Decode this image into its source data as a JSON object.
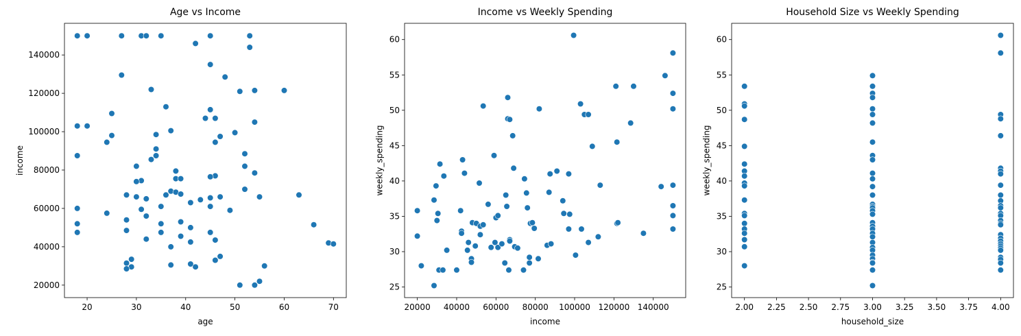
{
  "colors": {
    "point": "#1f77b4",
    "axis": "#000000",
    "background": "#ffffff"
  },
  "chart_data": [
    {
      "type": "scatter",
      "title": "Age vs Income",
      "xlabel": "age",
      "ylabel": "income",
      "xlim": [
        15.4,
        72.6
      ],
      "ylim": [
        13500,
        156500
      ],
      "xticks": [
        20,
        30,
        40,
        50,
        60,
        70
      ],
      "xtick_labels": [
        "20",
        "30",
        "40",
        "50",
        "60",
        "70"
      ],
      "yticks": [
        20000,
        40000,
        60000,
        80000,
        100000,
        120000,
        140000
      ],
      "ytick_labels": [
        "20000",
        "40000",
        "60000",
        "80000",
        "100000",
        "120000",
        "140000"
      ],
      "grid": false,
      "points": [
        [
          18,
          150000
        ],
        [
          20,
          150000
        ],
        [
          27,
          150000
        ],
        [
          31,
          150000
        ],
        [
          32,
          150000
        ],
        [
          35,
          150000
        ],
        [
          45,
          150000
        ],
        [
          53,
          150000
        ],
        [
          53,
          144000
        ],
        [
          42,
          146000
        ],
        [
          45,
          135000
        ],
        [
          27,
          129500
        ],
        [
          48,
          128500
        ],
        [
          33,
          122000
        ],
        [
          51,
          121000
        ],
        [
          54,
          121500
        ],
        [
          60,
          121500
        ],
        [
          36,
          113000
        ],
        [
          45,
          111500
        ],
        [
          25,
          109500
        ],
        [
          44,
          107000
        ],
        [
          46,
          107000
        ],
        [
          54,
          105000
        ],
        [
          18,
          103000
        ],
        [
          20,
          103000
        ],
        [
          46,
          94500
        ],
        [
          47,
          97500
        ],
        [
          50,
          99500
        ],
        [
          25,
          98000
        ],
        [
          24,
          94500
        ],
        [
          34,
          98500
        ],
        [
          37,
          100500
        ],
        [
          34,
          91000
        ],
        [
          33,
          85500
        ],
        [
          34,
          87500
        ],
        [
          18,
          87500
        ],
        [
          52,
          88500
        ],
        [
          52,
          82000
        ],
        [
          30,
          82000
        ],
        [
          38,
          79500
        ],
        [
          54,
          78500
        ],
        [
          46,
          77000
        ],
        [
          45,
          76500
        ],
        [
          31,
          74500
        ],
        [
          30,
          74000
        ],
        [
          38,
          75500
        ],
        [
          39,
          75500
        ],
        [
          37,
          69000
        ],
        [
          38,
          68500
        ],
        [
          39,
          67500
        ],
        [
          36,
          67000
        ],
        [
          28,
          67000
        ],
        [
          47,
          66000
        ],
        [
          45,
          65500
        ],
        [
          55,
          66000
        ],
        [
          63,
          67000
        ],
        [
          52,
          70000
        ],
        [
          30,
          66000
        ],
        [
          32,
          65000
        ],
        [
          41,
          63000
        ],
        [
          43,
          64500
        ],
        [
          45,
          61000
        ],
        [
          35,
          61000
        ],
        [
          31,
          59500
        ],
        [
          49,
          59000
        ],
        [
          18,
          60000
        ],
        [
          24,
          57500
        ],
        [
          32,
          56000
        ],
        [
          28,
          54000
        ],
        [
          39,
          53000
        ],
        [
          35,
          52000
        ],
        [
          18,
          52000
        ],
        [
          66,
          51500
        ],
        [
          41,
          50000
        ],
        [
          45,
          47500
        ],
        [
          35,
          47500
        ],
        [
          18,
          47500
        ],
        [
          28,
          48500
        ],
        [
          39,
          45500
        ],
        [
          32,
          44000
        ],
        [
          46,
          43500
        ],
        [
          41,
          42500
        ],
        [
          69,
          42000
        ],
        [
          70,
          41500
        ],
        [
          37,
          40000
        ],
        [
          47,
          35000
        ],
        [
          46,
          33000
        ],
        [
          29,
          33500
        ],
        [
          28,
          31500
        ],
        [
          41,
          31000
        ],
        [
          42,
          29500
        ],
        [
          37,
          30500
        ],
        [
          56,
          30000
        ],
        [
          29,
          29500
        ],
        [
          28,
          28500
        ],
        [
          55,
          22000
        ],
        [
          51,
          20000
        ],
        [
          54,
          20000
        ]
      ]
    },
    {
      "type": "scatter",
      "title": "Income vs Weekly Spending",
      "xlabel": "income",
      "ylabel": "weekly_spending",
      "xlim": [
        13500,
        156500
      ],
      "ylim": [
        23.5,
        62.3
      ],
      "xticks": [
        20000,
        40000,
        60000,
        80000,
        100000,
        120000,
        140000
      ],
      "xtick_labels": [
        "20000",
        "40000",
        "60000",
        "80000",
        "100000",
        "120000",
        "140000"
      ],
      "yticks": [
        25,
        30,
        35,
        40,
        45,
        50,
        55,
        60
      ],
      "ytick_labels": [
        "25",
        "30",
        "35",
        "40",
        "45",
        "50",
        "55",
        "60"
      ],
      "grid": false,
      "points": [
        [
          20000,
          35.8
        ],
        [
          20000,
          32.2
        ],
        [
          22000,
          28.0
        ],
        [
          28500,
          25.2
        ],
        [
          28500,
          37.3
        ],
        [
          29500,
          39.3
        ],
        [
          30000,
          34.4
        ],
        [
          30500,
          35.4
        ],
        [
          31000,
          27.4
        ],
        [
          31500,
          42.4
        ],
        [
          33000,
          27.4
        ],
        [
          33500,
          40.7
        ],
        [
          35000,
          30.2
        ],
        [
          40000,
          27.4
        ],
        [
          42000,
          35.8
        ],
        [
          42500,
          32.9
        ],
        [
          42500,
          32.6
        ],
        [
          43000,
          43.0
        ],
        [
          44000,
          41.1
        ],
        [
          45500,
          30.2
        ],
        [
          46000,
          31.3
        ],
        [
          47500,
          29.0
        ],
        [
          47500,
          28.5
        ],
        [
          48000,
          34.1
        ],
        [
          49500,
          30.8
        ],
        [
          50000,
          34.0
        ],
        [
          51500,
          39.7
        ],
        [
          52000,
          33.6
        ],
        [
          52000,
          32.4
        ],
        [
          53500,
          33.8
        ],
        [
          53500,
          50.6
        ],
        [
          56000,
          36.7
        ],
        [
          57500,
          30.6
        ],
        [
          59000,
          43.6
        ],
        [
          59500,
          31.3
        ],
        [
          60000,
          34.8
        ],
        [
          61000,
          35.1
        ],
        [
          61000,
          30.6
        ],
        [
          63000,
          31.1
        ],
        [
          64500,
          28.4
        ],
        [
          65000,
          38.0
        ],
        [
          65500,
          36.4
        ],
        [
          66000,
          51.8
        ],
        [
          66000,
          48.8
        ],
        [
          66500,
          27.4
        ],
        [
          67000,
          48.7
        ],
        [
          67000,
          31.7
        ],
        [
          67000,
          31.5
        ],
        [
          68500,
          46.4
        ],
        [
          69000,
          41.8
        ],
        [
          69500,
          30.7
        ],
        [
          71000,
          30.5
        ],
        [
          74000,
          27.4
        ],
        [
          74500,
          40.3
        ],
        [
          75500,
          38.3
        ],
        [
          76000,
          36.2
        ],
        [
          77000,
          28.4
        ],
        [
          77000,
          29.2
        ],
        [
          77500,
          34.0
        ],
        [
          78500,
          34.1
        ],
        [
          79500,
          33.3
        ],
        [
          81500,
          29.0
        ],
        [
          82000,
          50.2
        ],
        [
          86000,
          30.9
        ],
        [
          87000,
          38.4
        ],
        [
          87500,
          41.0
        ],
        [
          88000,
          31.1
        ],
        [
          91000,
          41.4
        ],
        [
          94000,
          37.2
        ],
        [
          94500,
          35.4
        ],
        [
          97000,
          41.0
        ],
        [
          97000,
          33.2
        ],
        [
          97500,
          35.3
        ],
        [
          99500,
          60.6
        ],
        [
          100500,
          29.5
        ],
        [
          103000,
          50.9
        ],
        [
          103500,
          33.2
        ],
        [
          105000,
          49.4
        ],
        [
          107000,
          49.4
        ],
        [
          107000,
          31.3
        ],
        [
          109000,
          44.9
        ],
        [
          112000,
          32.1
        ],
        [
          113000,
          39.4
        ],
        [
          121000,
          53.4
        ],
        [
          121500,
          45.5
        ],
        [
          121500,
          34.0
        ],
        [
          122000,
          34.1
        ],
        [
          128500,
          48.2
        ],
        [
          130000,
          53.4
        ],
        [
          135000,
          32.6
        ],
        [
          144000,
          39.2
        ],
        [
          146000,
          54.9
        ],
        [
          150000,
          58.1
        ],
        [
          150000,
          52.4
        ],
        [
          150000,
          50.2
        ],
        [
          150000,
          39.4
        ],
        [
          150000,
          36.5
        ],
        [
          150000,
          35.1
        ],
        [
          150000,
          33.2
        ]
      ]
    },
    {
      "type": "scatter",
      "title": "Household Size vs Weekly Spending",
      "xlabel": "household_size",
      "ylabel": "weekly_spending",
      "xlim": [
        1.9,
        4.1
      ],
      "ylim": [
        23.5,
        62.3
      ],
      "xticks": [
        2.0,
        2.25,
        2.5,
        2.75,
        3.0,
        3.25,
        3.5,
        3.75,
        4.0
      ],
      "xtick_labels": [
        "2.00",
        "2.25",
        "2.50",
        "2.75",
        "3.00",
        "3.25",
        "3.50",
        "3.75",
        "4.00"
      ],
      "yticks": [
        25,
        30,
        35,
        40,
        45,
        50,
        55,
        60
      ],
      "ytick_labels": [
        "25",
        "30",
        "35",
        "40",
        "45",
        "50",
        "55",
        "60"
      ],
      "grid": false,
      "points": [
        [
          2,
          53.4
        ],
        [
          2,
          50.9
        ],
        [
          2,
          50.6
        ],
        [
          2,
          48.7
        ],
        [
          2,
          44.9
        ],
        [
          2,
          42.4
        ],
        [
          2,
          41.4
        ],
        [
          2,
          40.7
        ],
        [
          2,
          39.7
        ],
        [
          2,
          39.3
        ],
        [
          2,
          37.3
        ],
        [
          2,
          35.4
        ],
        [
          2,
          35.1
        ],
        [
          2,
          34.0
        ],
        [
          2,
          33.2
        ],
        [
          2,
          32.6
        ],
        [
          2,
          31.7
        ],
        [
          2,
          30.7
        ],
        [
          2,
          28.0
        ],
        [
          3,
          54.9
        ],
        [
          3,
          53.4
        ],
        [
          3,
          52.4
        ],
        [
          3,
          51.8
        ],
        [
          3,
          50.2
        ],
        [
          3,
          49.4
        ],
        [
          3,
          48.2
        ],
        [
          3,
          45.5
        ],
        [
          3,
          43.6
        ],
        [
          3,
          43.0
        ],
        [
          3,
          41.1
        ],
        [
          3,
          40.3
        ],
        [
          3,
          39.2
        ],
        [
          3,
          38.0
        ],
        [
          3,
          36.7
        ],
        [
          3,
          36.4
        ],
        [
          3,
          36.2
        ],
        [
          3,
          35.8
        ],
        [
          3,
          35.3
        ],
        [
          3,
          34.1
        ],
        [
          3,
          33.6
        ],
        [
          3,
          33.2
        ],
        [
          3,
          32.6
        ],
        [
          3,
          32.1
        ],
        [
          3,
          31.3
        ],
        [
          3,
          30.6
        ],
        [
          3,
          30.2
        ],
        [
          3,
          29.5
        ],
        [
          3,
          29.0
        ],
        [
          3,
          28.5
        ],
        [
          3,
          28.4
        ],
        [
          3,
          27.4
        ],
        [
          3,
          25.2
        ],
        [
          4,
          60.6
        ],
        [
          4,
          58.1
        ],
        [
          4,
          49.4
        ],
        [
          4,
          48.8
        ],
        [
          4,
          46.4
        ],
        [
          4,
          41.8
        ],
        [
          4,
          41.4
        ],
        [
          4,
          41.0
        ],
        [
          4,
          39.4
        ],
        [
          4,
          38.0
        ],
        [
          4,
          37.2
        ],
        [
          4,
          36.5
        ],
        [
          4,
          36.2
        ],
        [
          4,
          35.4
        ],
        [
          4,
          35.1
        ],
        [
          4,
          34.4
        ],
        [
          4,
          34.0
        ],
        [
          4,
          33.8
        ],
        [
          4,
          32.4
        ],
        [
          4,
          31.9
        ],
        [
          4,
          31.5
        ],
        [
          4,
          31.1
        ],
        [
          4,
          30.8
        ],
        [
          4,
          30.5
        ],
        [
          4,
          30.2
        ],
        [
          4,
          29.2
        ],
        [
          4,
          28.9
        ],
        [
          4,
          28.4
        ],
        [
          4,
          27.4
        ]
      ]
    }
  ]
}
